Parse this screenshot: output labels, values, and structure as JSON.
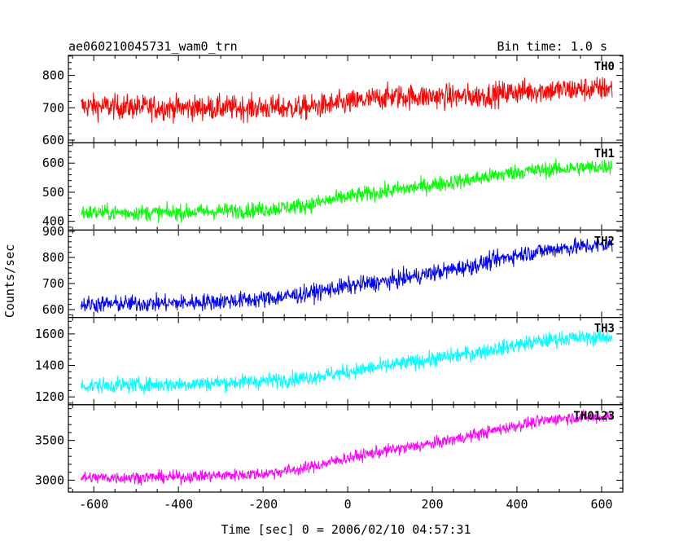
{
  "chart_data": {
    "type": "line",
    "title_left": "ae060210045731_wam0_trn",
    "title_right": "Bin time: 1.0 s",
    "xlabel": "Time [sec] 0 = 2006/02/10 04:57:31",
    "ylabel": "Counts/sec",
    "xlim": [
      -660,
      650
    ],
    "x_ticks": [
      -600,
      -400,
      -200,
      0,
      200,
      400,
      600
    ],
    "x_range": [
      -630,
      625
    ],
    "grid": false,
    "panels": [
      {
        "name": "TH0",
        "color": "#ff0000",
        "ylim": [
          592,
          862
        ],
        "y_ticks": [
          600,
          700,
          800
        ],
        "x": [
          -630,
          -400,
          -200,
          -100,
          0,
          100,
          200,
          300,
          400,
          500,
          625
        ],
        "y": [
          705,
          700,
          700,
          700,
          715,
          735,
          735,
          735,
          750,
          755,
          760
        ],
        "noise": 35
      },
      {
        "name": "TH1",
        "color": "#00ff00",
        "ylim": [
          370,
          670
        ],
        "y_ticks": [
          400,
          500,
          600
        ],
        "x": [
          -630,
          -400,
          -200,
          -100,
          0,
          100,
          200,
          300,
          400,
          500,
          625
        ],
        "y": [
          430,
          430,
          440,
          455,
          485,
          505,
          525,
          545,
          570,
          580,
          590
        ],
        "noise": 25
      },
      {
        "name": "TH2",
        "color": "#0000ff",
        "ylim": [
          570,
          905
        ],
        "y_ticks": [
          600,
          700,
          800,
          900
        ],
        "x": [
          -630,
          -400,
          -200,
          -100,
          0,
          100,
          200,
          300,
          400,
          500,
          625
        ],
        "y": [
          620,
          625,
          640,
          660,
          690,
          710,
          740,
          770,
          810,
          835,
          850
        ],
        "noise": 30
      },
      {
        "name": "TH3",
        "color": "#00ffff",
        "ylim": [
          1150,
          1705
        ],
        "y_ticks": [
          1200,
          1400,
          1600
        ],
        "x": [
          -630,
          -400,
          -200,
          -100,
          0,
          100,
          200,
          300,
          400,
          500,
          625
        ],
        "y": [
          1270,
          1280,
          1300,
          1320,
          1360,
          1400,
          1440,
          1480,
          1530,
          1570,
          1580
        ],
        "noise": 45
      },
      {
        "name": "TH0123",
        "color": "#ff00ff",
        "ylim": [
          2850,
          3950
        ],
        "y_ticks": [
          3000,
          3500
        ],
        "x": [
          -630,
          -400,
          -200,
          -100,
          0,
          100,
          200,
          300,
          400,
          500,
          625
        ],
        "y": [
          3030,
          3040,
          3080,
          3150,
          3280,
          3380,
          3460,
          3570,
          3690,
          3780,
          3800
        ],
        "noise": 70
      }
    ]
  }
}
